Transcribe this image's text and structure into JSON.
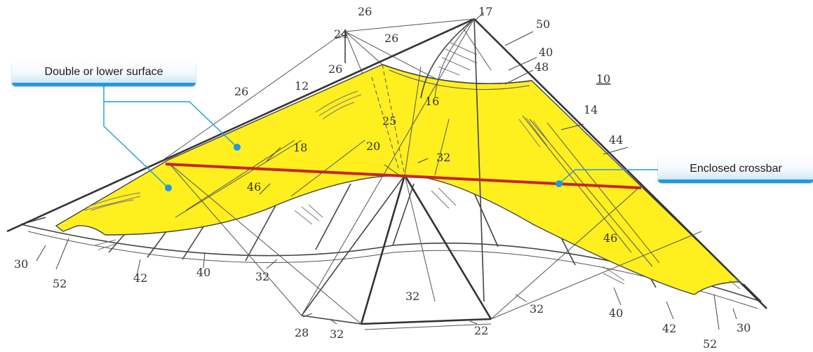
{
  "callouts": {
    "lower_surface": "Double or lower surface",
    "crossbar": "Enclosed crossbar"
  },
  "colors": {
    "surface_fill": "#ffef1f",
    "crossbar": "#c5262c",
    "callout_line": "#1e9be0"
  },
  "refs": {
    "r10": "10",
    "r12": "12",
    "r14": "14",
    "r16": "16",
    "r17": "17",
    "r18": "18",
    "r20": "20",
    "r22": "22",
    "r24": "24",
    "r25": "25",
    "r26": "26",
    "r28": "28",
    "r30": "30",
    "r32": "32",
    "r40": "40",
    "r42": "42",
    "r44": "44",
    "r46": "46",
    "r48": "48",
    "r50": "50",
    "r52": "52"
  }
}
